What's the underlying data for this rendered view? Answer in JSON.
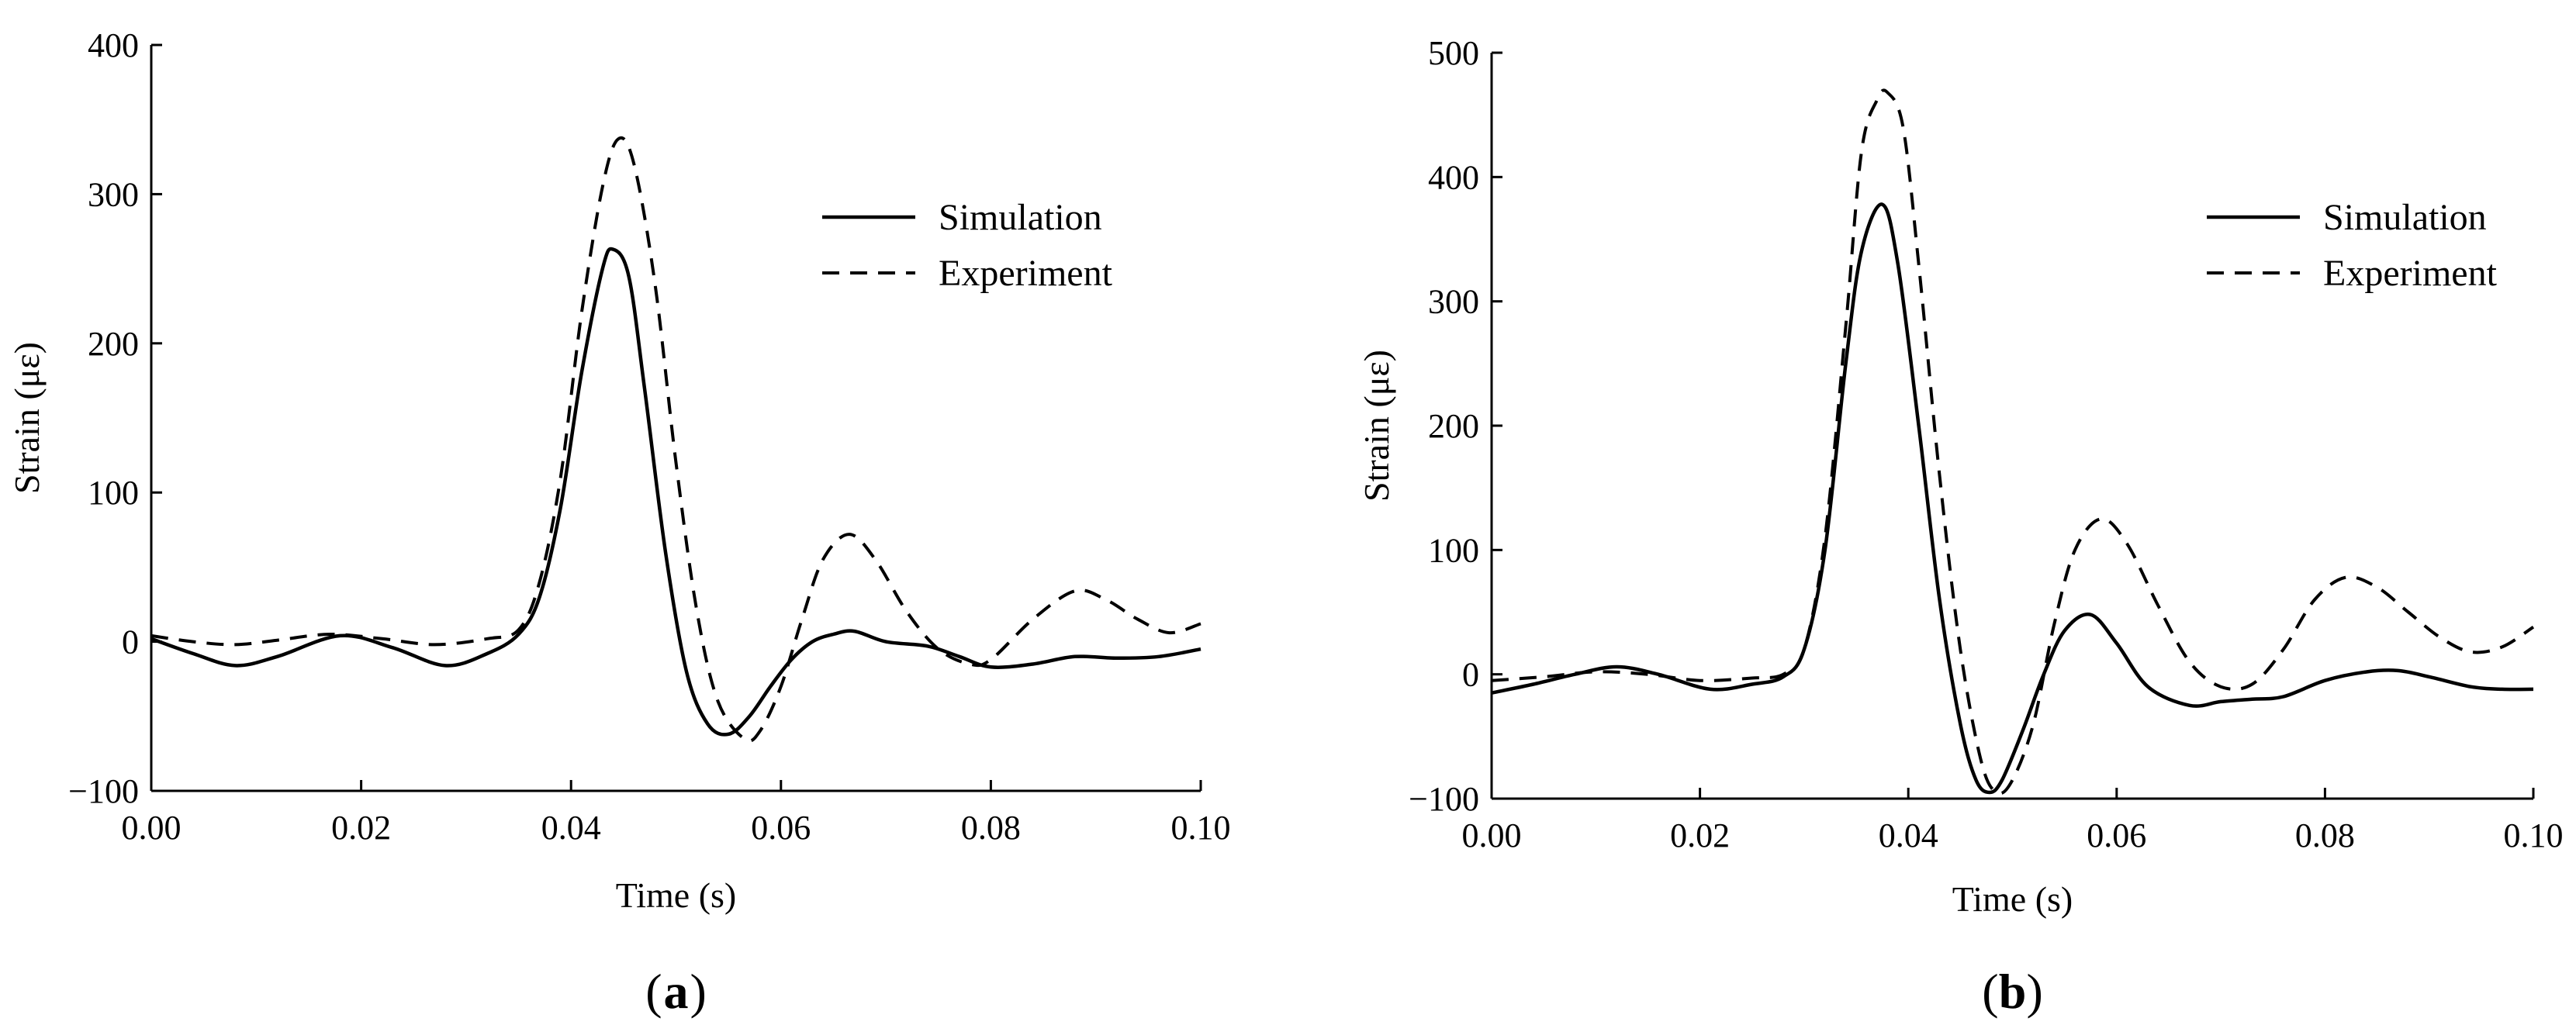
{
  "chart_data": [
    {
      "type": "line",
      "panel_label": "a",
      "xlabel": "Time (s)",
      "ylabel": "Strain (με)",
      "xlim": [
        0.0,
        0.1
      ],
      "ylim": [
        -100,
        400
      ],
      "xticks": [
        0.0,
        0.02,
        0.04,
        0.06,
        0.08,
        0.1
      ],
      "xtick_labels": [
        "0.00",
        "0.02",
        "0.04",
        "0.06",
        "0.08",
        "0.10"
      ],
      "yticks": [
        -100,
        0,
        100,
        200,
        300,
        400
      ],
      "ytick_labels": [
        "−100",
        "0",
        "100",
        "200",
        "300",
        "400"
      ],
      "legend": {
        "position": "top-right",
        "entries": [
          "Simulation",
          "Experiment"
        ]
      },
      "series": [
        {
          "name": "Simulation",
          "style": "solid",
          "x": [
            0.0,
            0.004,
            0.008,
            0.012,
            0.018,
            0.023,
            0.028,
            0.032,
            0.035,
            0.037,
            0.039,
            0.041,
            0.043,
            0.044,
            0.0455,
            0.047,
            0.049,
            0.051,
            0.053,
            0.055,
            0.057,
            0.059,
            0.061,
            0.063,
            0.065,
            0.067,
            0.07,
            0.074,
            0.077,
            0.08,
            0.084,
            0.088,
            0.092,
            0.096,
            0.1
          ],
          "values": [
            2,
            -8,
            -16,
            -10,
            4,
            -4,
            -16,
            -8,
            5,
            30,
            90,
            180,
            250,
            263,
            245,
            170,
            60,
            -20,
            -55,
            -62,
            -50,
            -30,
            -12,
            0,
            5,
            7,
            0,
            -3,
            -10,
            -17,
            -15,
            -10,
            -11,
            -10,
            -5
          ]
        },
        {
          "name": "Experiment",
          "style": "dashed",
          "x": [
            0.0,
            0.004,
            0.008,
            0.012,
            0.017,
            0.022,
            0.027,
            0.032,
            0.035,
            0.037,
            0.039,
            0.041,
            0.043,
            0.0445,
            0.046,
            0.048,
            0.05,
            0.052,
            0.054,
            0.0565,
            0.058,
            0.06,
            0.062,
            0.064,
            0.0665,
            0.069,
            0.072,
            0.075,
            0.078,
            0.08,
            0.084,
            0.088,
            0.091,
            0.094,
            0.097,
            0.1
          ],
          "values": [
            4,
            0,
            -2,
            1,
            5,
            2,
            -2,
            2,
            8,
            40,
            110,
            220,
            305,
            337,
            320,
            240,
            120,
            20,
            -40,
            -65,
            -60,
            -30,
            15,
            55,
            72,
            55,
            20,
            -5,
            -15,
            -12,
            15,
            34,
            28,
            15,
            6,
            12
          ]
        }
      ]
    },
    {
      "type": "line",
      "panel_label": "b",
      "xlabel": "Time (s)",
      "ylabel": "Strain (με)",
      "xlim": [
        0.0,
        0.1
      ],
      "ylim": [
        -100,
        500
      ],
      "xticks": [
        0.0,
        0.02,
        0.04,
        0.06,
        0.08,
        0.1
      ],
      "xtick_labels": [
        "0.00",
        "0.02",
        "0.04",
        "0.06",
        "0.08",
        "0.10"
      ],
      "yticks": [
        -100,
        0,
        100,
        200,
        300,
        400,
        500
      ],
      "ytick_labels": [
        "−100",
        "0",
        "100",
        "200",
        "300",
        "400",
        "500"
      ],
      "legend": {
        "position": "top-right",
        "entries": [
          "Simulation",
          "Experiment"
        ]
      },
      "series": [
        {
          "name": "Simulation",
          "style": "solid",
          "x": [
            0.0,
            0.004,
            0.008,
            0.012,
            0.016,
            0.021,
            0.025,
            0.028,
            0.03,
            0.032,
            0.034,
            0.0355,
            0.0375,
            0.039,
            0.041,
            0.043,
            0.045,
            0.0465,
            0.0478,
            0.049,
            0.051,
            0.053,
            0.055,
            0.0575,
            0.06,
            0.063,
            0.067,
            0.07,
            0.073,
            0.076,
            0.08,
            0.084,
            0.087,
            0.09,
            0.094,
            0.097,
            0.1
          ],
          "values": [
            -15,
            -8,
            0,
            6,
            0,
            -12,
            -8,
            -2,
            20,
            100,
            250,
            340,
            378,
            330,
            200,
            60,
            -40,
            -85,
            -95,
            -85,
            -45,
            0,
            35,
            48,
            25,
            -10,
            -25,
            -22,
            -20,
            -18,
            -5,
            2,
            3,
            -2,
            -10,
            -12,
            -12
          ]
        },
        {
          "name": "Experiment",
          "style": "dashed",
          "x": [
            0.0,
            0.005,
            0.01,
            0.015,
            0.02,
            0.025,
            0.028,
            0.03,
            0.032,
            0.034,
            0.0355,
            0.037,
            0.038,
            0.0395,
            0.041,
            0.043,
            0.045,
            0.047,
            0.0485,
            0.05,
            0.052,
            0.054,
            0.056,
            0.0585,
            0.061,
            0.064,
            0.067,
            0.07,
            0.073,
            0.076,
            0.079,
            0.082,
            0.085,
            0.088,
            0.091,
            0.094,
            0.097,
            0.1
          ],
          "values": [
            -5,
            -2,
            2,
            0,
            -5,
            -3,
            0,
            20,
            110,
            280,
            420,
            462,
            468,
            440,
            330,
            160,
            20,
            -70,
            -95,
            -85,
            -40,
            40,
            100,
            125,
            105,
            55,
            10,
            -10,
            -8,
            20,
            60,
            78,
            70,
            50,
            30,
            18,
            22,
            38
          ]
        }
      ]
    }
  ]
}
